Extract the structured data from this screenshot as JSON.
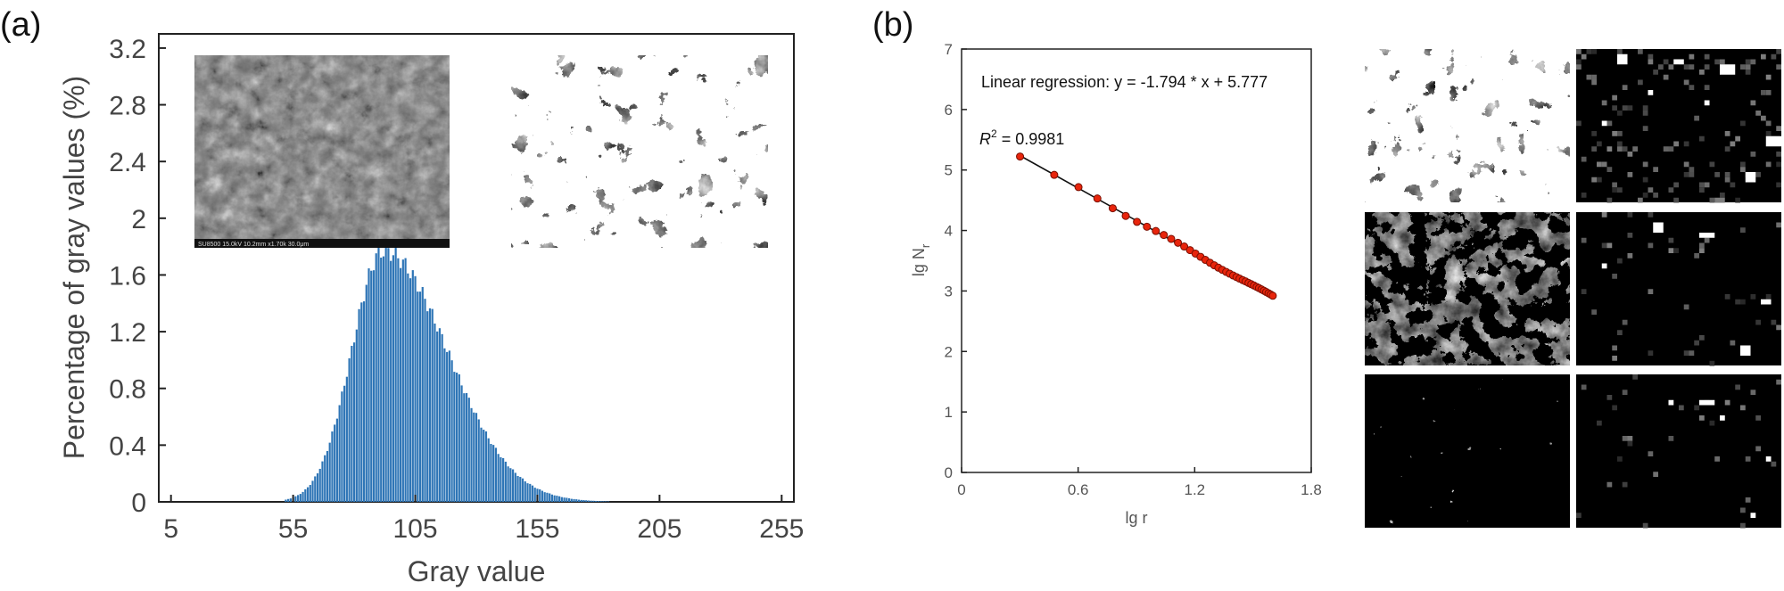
{
  "panels": {
    "a_label": "(a)",
    "b_label": "(b)"
  },
  "chart_data": [
    {
      "id": "histogram",
      "type": "bar",
      "xlabel": "Gray value",
      "ylabel": "Percentage of gray values (%)",
      "xlim": [
        0,
        260
      ],
      "ylim": [
        0,
        3.3
      ],
      "xticks": [
        5,
        55,
        105,
        155,
        205,
        255
      ],
      "yticks": [
        0,
        0.4,
        0.8,
        1.2,
        1.6,
        2,
        2.4,
        2.8,
        3.2
      ],
      "ytick_labels": [
        "0",
        "0.4",
        "0.8",
        "1.2",
        "1.6",
        "2",
        "2.4",
        "2.8",
        "3.2"
      ],
      "distribution": {
        "x_start": 52,
        "x_end": 196,
        "peak_x": 92,
        "peak_value": 1.77,
        "sigma_left": 13,
        "sigma_right": 26
      },
      "bar_color": "#2e75b6",
      "insets": [
        {
          "name": "sem-image-inset",
          "caption": "SU8500 15.0kV 10.2mm x1.70k        30.0μm"
        },
        {
          "name": "binary-image-inset"
        }
      ]
    },
    {
      "id": "box-counting",
      "type": "scatter",
      "xlabel": "lg r",
      "ylabel": "lg N",
      "ylabel_sub": "r",
      "xlim": [
        0,
        1.8
      ],
      "ylim": [
        0,
        7
      ],
      "xticks": [
        0,
        0.6,
        1.2,
        1.8
      ],
      "xtick_labels": [
        "0",
        "0.6",
        "1.2",
        "1.8"
      ],
      "yticks": [
        0,
        1,
        2,
        3,
        4,
        5,
        6,
        7
      ],
      "regression_text": "Linear regression: y = -1.794 * x + 5.777",
      "r2_text": " = 0.9981",
      "r2_symbol": "R",
      "r2_sup": "2",
      "fit": {
        "slope": -1.794,
        "intercept": 5.777,
        "x_range": [
          0.301,
          1.602
        ]
      },
      "x": [
        0.301,
        0.477,
        0.602,
        0.699,
        0.778,
        0.845,
        0.903,
        0.954,
        1.0,
        1.041,
        1.079,
        1.114,
        1.146,
        1.176,
        1.204,
        1.23,
        1.255,
        1.279,
        1.301,
        1.322,
        1.342,
        1.362,
        1.38,
        1.398,
        1.415,
        1.431,
        1.447,
        1.462,
        1.477,
        1.491,
        1.505,
        1.519,
        1.531,
        1.544,
        1.556,
        1.568,
        1.58,
        1.591,
        1.602
      ],
      "point_color": "#e8250c",
      "line_color": "#111111"
    }
  ],
  "thumbnails": [
    {
      "name": "thumb-binary-1"
    },
    {
      "name": "thumb-grid-1"
    },
    {
      "name": "thumb-binary-2"
    },
    {
      "name": "thumb-grid-2"
    },
    {
      "name": "thumb-binary-3"
    },
    {
      "name": "thumb-grid-3"
    }
  ]
}
